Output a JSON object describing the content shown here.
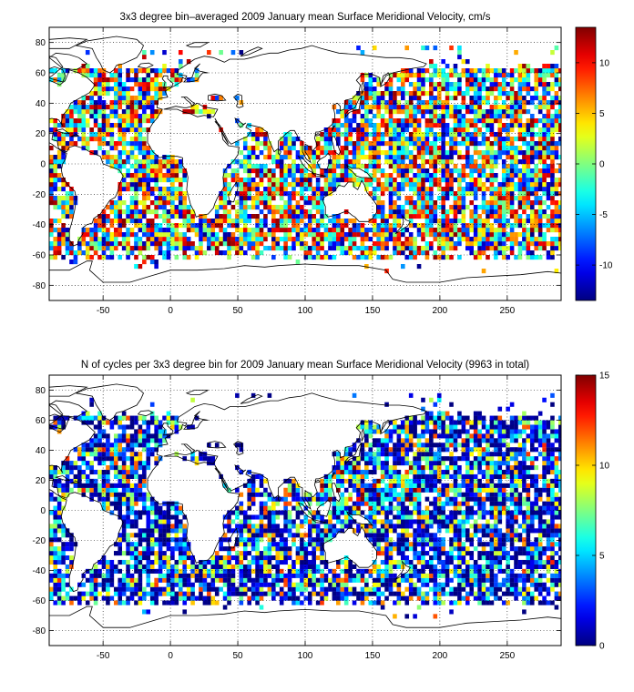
{
  "chart_data": [
    {
      "type": "heatmap",
      "title": "3x3 degree bin–averaged 2009 January mean Surface Meridional Velocity, cm/s",
      "xlabel": "",
      "ylabel": "",
      "xlim": [
        -90,
        290
      ],
      "ylim": [
        -90,
        90
      ],
      "xticks": [
        -50,
        0,
        50,
        100,
        150,
        200,
        250
      ],
      "yticks": [
        -80,
        -60,
        -40,
        -20,
        0,
        20,
        40,
        60,
        80
      ],
      "grid": true,
      "bin_size_deg": 3,
      "colormap": "jet",
      "colorbar": {
        "range": [
          -13.5,
          13.5
        ],
        "ticks": [
          -10,
          -5,
          0,
          5,
          10
        ]
      },
      "field": "meridional_velocity"
    },
    {
      "type": "heatmap",
      "title": "N of cycles per 3x3 degree bin for 2009 January mean Surface Meridional Velocity (9963 in total)",
      "xlabel": "",
      "ylabel": "",
      "xlim": [
        -90,
        290
      ],
      "ylim": [
        -90,
        90
      ],
      "xticks": [
        -50,
        0,
        50,
        100,
        150,
        200,
        250
      ],
      "yticks": [
        -80,
        -60,
        -40,
        -20,
        0,
        20,
        40,
        60,
        80
      ],
      "grid": true,
      "bin_size_deg": 3,
      "colormap": "jet",
      "colorbar": {
        "range": [
          0,
          15
        ],
        "ticks": [
          0,
          5,
          10,
          15
        ]
      },
      "field": "cycle_count"
    }
  ],
  "colors": {
    "jet_low": "#00008f",
    "jet_mid": "#7fff7f",
    "jet_high": "#800000",
    "coastline": "#000000",
    "grid": "#000000"
  }
}
